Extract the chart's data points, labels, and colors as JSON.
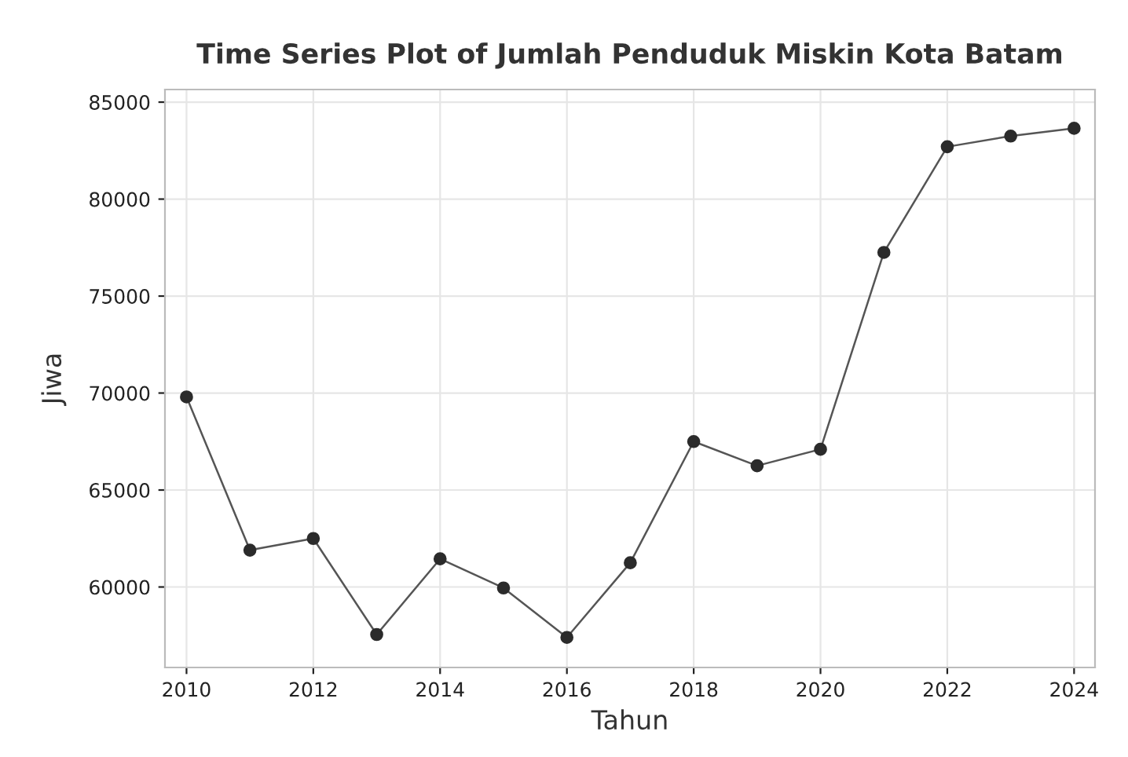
{
  "chart_data": {
    "type": "line",
    "title": "Time Series Plot of Jumlah Penduduk Miskin Kota Batam",
    "xlabel": "Tahun",
    "ylabel": "Jiwa",
    "x": [
      2010,
      2011,
      2012,
      2013,
      2014,
      2015,
      2016,
      2017,
      2018,
      2019,
      2020,
      2021,
      2022,
      2023,
      2024
    ],
    "series": [
      {
        "color": "#2b2b2b",
        "values": [
          69800,
          61900,
          62500,
          57550,
          61450,
          59950,
          57400,
          61250,
          67500,
          66250,
          67100,
          77250,
          82700,
          83250,
          83650
        ]
      }
    ],
    "xlim": [
      2009.66,
      2024.33
    ],
    "xticks": [
      2010,
      2012,
      2014,
      2016,
      2018,
      2020,
      2022,
      2024
    ],
    "ylim": [
      55850,
      85650
    ],
    "yticks": [
      60000,
      65000,
      70000,
      75000,
      80000,
      85000
    ],
    "grid": true,
    "marker": "circle",
    "line_style": "solid"
  }
}
